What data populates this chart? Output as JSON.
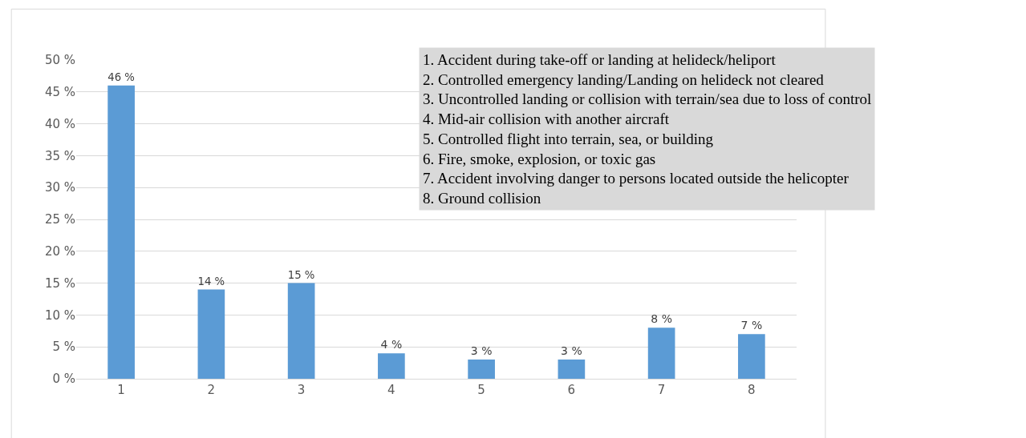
{
  "chart_data": {
    "type": "bar",
    "categories": [
      "1",
      "2",
      "3",
      "4",
      "5",
      "6",
      "7",
      "8"
    ],
    "values": [
      46,
      14,
      15,
      4,
      3,
      3,
      8,
      7
    ],
    "value_labels": [
      "46 %",
      "14 %",
      "15 %",
      "4 %",
      "3 %",
      "3 %",
      "8 %",
      "7 %"
    ],
    "color": "#5b9bd5",
    "ylim": [
      0,
      50
    ],
    "yticks": [
      {
        "value": 0,
        "label": "0 %"
      },
      {
        "value": 5,
        "label": "5 %"
      },
      {
        "value": 10,
        "label": "10 %"
      },
      {
        "value": 15,
        "label": "15 %"
      },
      {
        "value": 20,
        "label": "20 %"
      },
      {
        "value": 25,
        "label": "25 %"
      },
      {
        "value": 30,
        "label": "30 %"
      },
      {
        "value": 35,
        "label": "35 %"
      },
      {
        "value": 40,
        "label": "40 %"
      },
      {
        "value": 45,
        "label": "45 %"
      },
      {
        "value": 50,
        "label": "50 %"
      }
    ],
    "grid": "y",
    "annotations": [
      "1. Accident during take-off or landing at helideck/heliport",
      "2. Controlled emergency landing/Landing on helideck not cleared",
      "3. Uncontrolled landing or collision with terrain/sea due to loss of control",
      "4. Mid-air collision with another aircraft",
      "5. Controlled flight into terrain, sea, or building",
      "6. Fire, smoke, explosion, or toxic gas",
      "7. Accident involving danger to persons located outside the helicopter",
      "8. Ground collision"
    ]
  }
}
